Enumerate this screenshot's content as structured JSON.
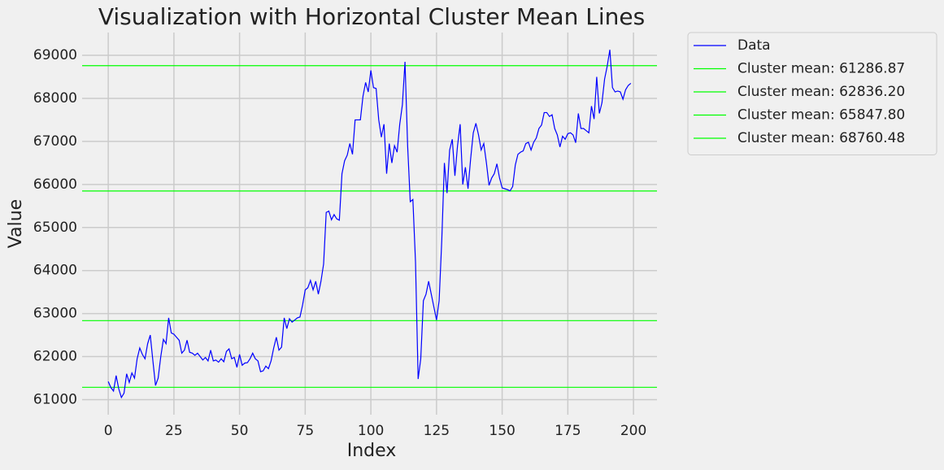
{
  "chart_data": {
    "type": "line",
    "title": "Visualization with Horizontal Cluster Mean Lines",
    "x_label": "Index",
    "y_label": "Value",
    "x": [
      0,
      1,
      2,
      3,
      4,
      5,
      6,
      7,
      8,
      9,
      10,
      11,
      12,
      13,
      14,
      15,
      16,
      17,
      18,
      19,
      20,
      21,
      22,
      23,
      24,
      25,
      26,
      27,
      28,
      29,
      30,
      31,
      32,
      33,
      34,
      35,
      36,
      37,
      38,
      39,
      40,
      41,
      42,
      43,
      44,
      45,
      46,
      47,
      48,
      49,
      50,
      51,
      52,
      53,
      54,
      55,
      56,
      57,
      58,
      59,
      60,
      61,
      62,
      63,
      64,
      65,
      66,
      67,
      68,
      69,
      70,
      71,
      72,
      73,
      74,
      75,
      76,
      77,
      78,
      79,
      80,
      81,
      82,
      83,
      84,
      85,
      86,
      87,
      88,
      89,
      90,
      91,
      92,
      93,
      94,
      95,
      96,
      97,
      98,
      99,
      100,
      101,
      102,
      103,
      104,
      105,
      106,
      107,
      108,
      109,
      110,
      111,
      112,
      113,
      114,
      115,
      116,
      117,
      118,
      119,
      120,
      121,
      122,
      123,
      124,
      125,
      126,
      127,
      128,
      129,
      130,
      131,
      132,
      133,
      134,
      135,
      136,
      137,
      138,
      139,
      140,
      141,
      142,
      143,
      144,
      145,
      146,
      147,
      148,
      149,
      150,
      151,
      152,
      153,
      154,
      155,
      156,
      157,
      158,
      159,
      160,
      161,
      162,
      163,
      164,
      165,
      166,
      167,
      168,
      169,
      170,
      171,
      172,
      173,
      174,
      175,
      176,
      177,
      178,
      179,
      180,
      181,
      182,
      183,
      184,
      185,
      186,
      187,
      188,
      189,
      190,
      191,
      192,
      193,
      194,
      195,
      196,
      197,
      198,
      199
    ],
    "series": [
      {
        "name": "Data",
        "color": "#0000ff",
        "values": [
          61420,
          61280,
          61200,
          61560,
          61250,
          61050,
          61150,
          61600,
          61400,
          61620,
          61500,
          61950,
          62200,
          62050,
          61950,
          62300,
          62500,
          61900,
          61330,
          61500,
          62000,
          62400,
          62300,
          62900,
          62550,
          62520,
          62450,
          62380,
          62080,
          62150,
          62380,
          62100,
          62080,
          62030,
          62080,
          62000,
          61920,
          61980,
          61900,
          62150,
          61900,
          61920,
          61870,
          61950,
          61880,
          62120,
          62180,
          61950,
          61980,
          61750,
          62050,
          61800,
          61850,
          61860,
          61950,
          62080,
          61950,
          61900,
          61650,
          61670,
          61780,
          61720,
          61900,
          62200,
          62450,
          62150,
          62220,
          62900,
          62650,
          62880,
          62800,
          62850,
          62900,
          62920,
          63200,
          63550,
          63600,
          63770,
          63550,
          63750,
          63450,
          63750,
          64150,
          65350,
          65380,
          65180,
          65300,
          65200,
          65170,
          66250,
          66550,
          66680,
          66950,
          66700,
          67500,
          67500,
          67500,
          68050,
          68370,
          68150,
          68650,
          68250,
          68230,
          67500,
          67100,
          67400,
          66250,
          66950,
          66500,
          66900,
          66750,
          67400,
          67850,
          68850,
          66900,
          65600,
          65650,
          64200,
          61480,
          61950,
          63300,
          63450,
          63750,
          63450,
          63150,
          62850,
          63300,
          64700,
          66500,
          65800,
          66800,
          67050,
          66200,
          66900,
          67400,
          66000,
          66400,
          65900,
          66600,
          67200,
          67420,
          67150,
          66800,
          66950,
          66500,
          65980,
          66150,
          66250,
          66480,
          66150,
          65920,
          65900,
          65880,
          65850,
          65950,
          66450,
          66700,
          66750,
          66780,
          66950,
          66980,
          66800,
          66980,
          67080,
          67300,
          67380,
          67670,
          67670,
          67580,
          67620,
          67300,
          67150,
          66870,
          67120,
          67050,
          67180,
          67200,
          67150,
          66970,
          67650,
          67300,
          67300,
          67250,
          67200,
          67820,
          67520,
          68500,
          67650,
          67900,
          68450,
          68750,
          69130,
          68250,
          68150,
          68170,
          68150,
          67980,
          68200,
          68300,
          68350
        ]
      }
    ],
    "hlines": [
      {
        "name": "Cluster mean: 61286.87",
        "value": 61286.87,
        "color": "#00ff00"
      },
      {
        "name": "Cluster mean: 62836.20",
        "value": 62836.2,
        "color": "#00ff00"
      },
      {
        "name": "Cluster mean: 65847.80",
        "value": 65847.8,
        "color": "#00ff00"
      },
      {
        "name": "Cluster mean: 68760.48",
        "value": 68760.48,
        "color": "#00ff00"
      }
    ],
    "xlim": [
      -9.95,
      208.95
    ],
    "ylim": [
      60650,
      69530
    ],
    "xticks": [
      0,
      25,
      50,
      75,
      100,
      125,
      150,
      175,
      200
    ],
    "yticks": [
      61000,
      62000,
      63000,
      64000,
      65000,
      66000,
      67000,
      68000,
      69000
    ],
    "grid": true,
    "legend": "outside upper right"
  }
}
